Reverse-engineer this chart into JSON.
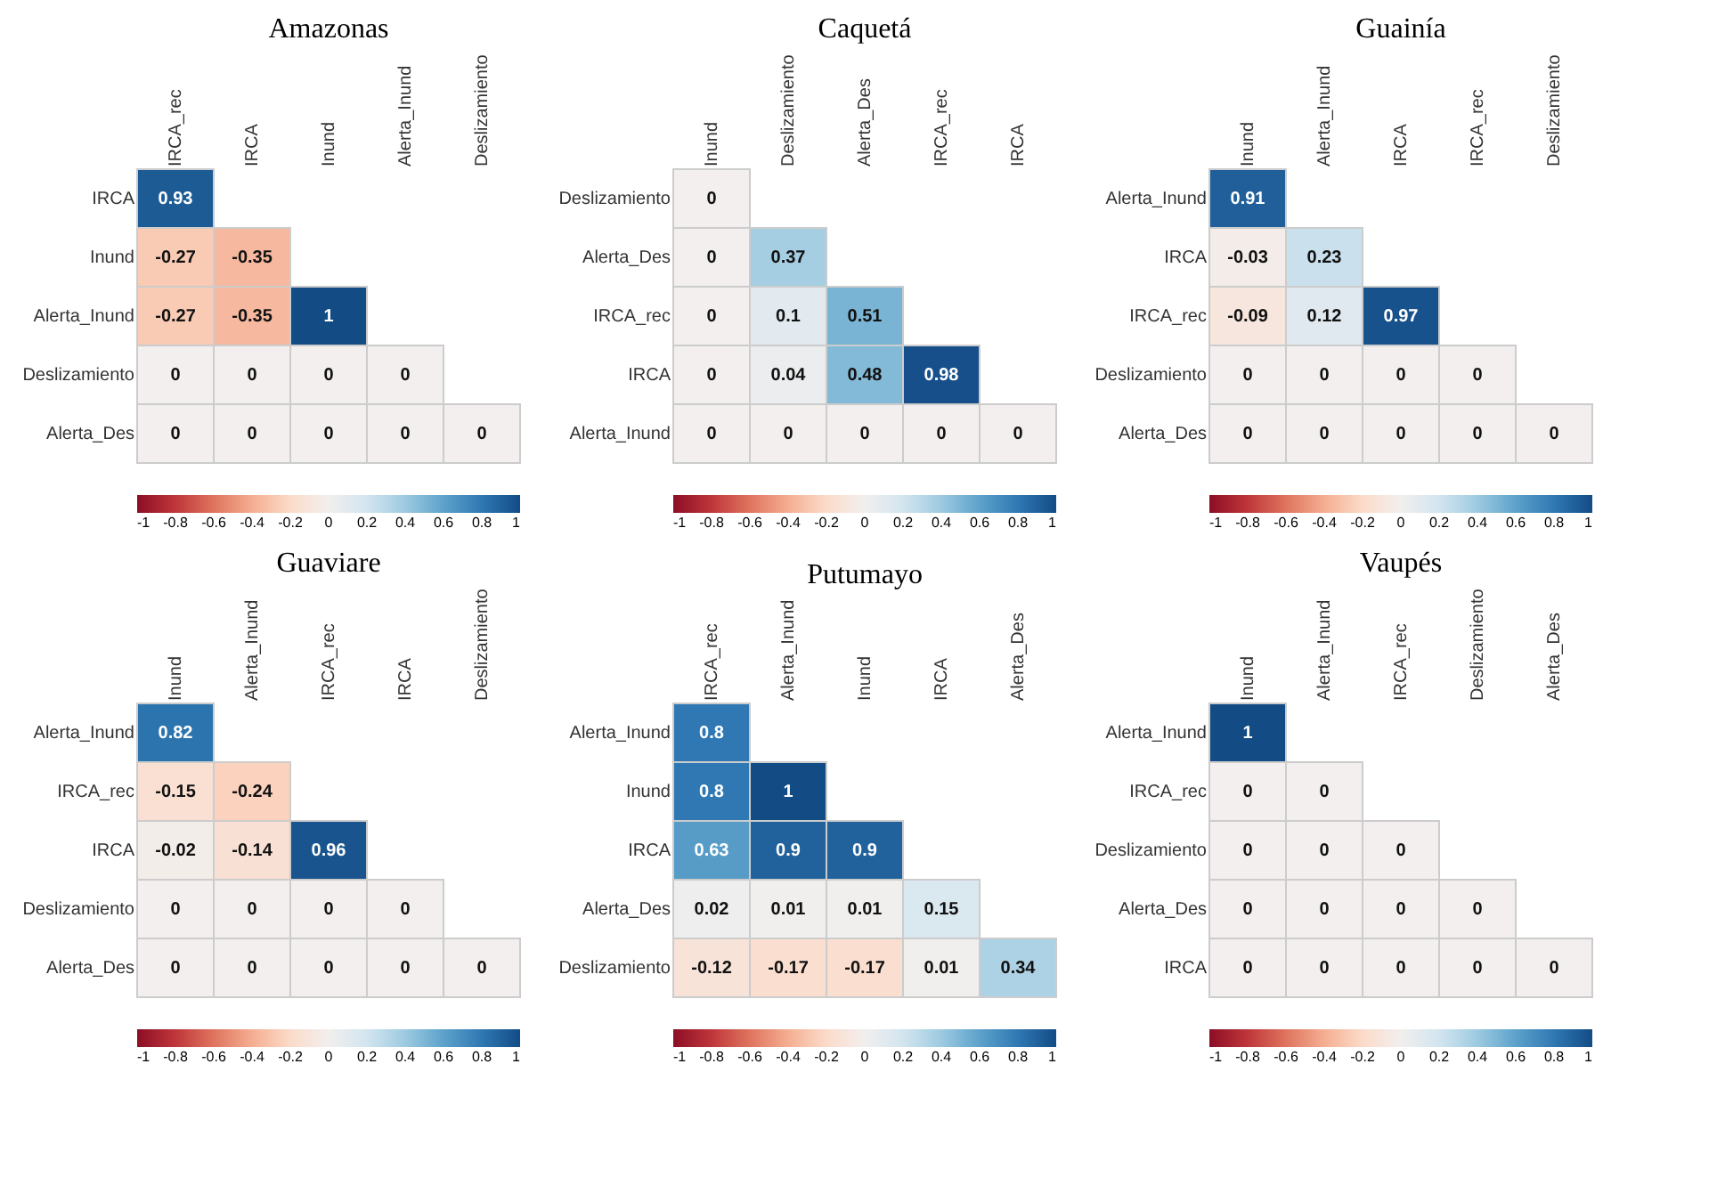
{
  "chart_data": [
    {
      "type": "heatmap",
      "title": "Amazonas",
      "categories": [
        "IRCA_rec",
        "IRCA",
        "Inund",
        "Alerta_Inund",
        "Deslizamiento"
      ],
      "y_categories": [
        "IRCA",
        "Inund",
        "Alerta_Inund",
        "Deslizamiento",
        "Alerta_Des"
      ],
      "cells": [
        [
          0.93,
          null,
          null,
          null,
          null
        ],
        [
          -0.27,
          -0.35,
          null,
          null,
          null
        ],
        [
          -0.27,
          -0.35,
          1,
          null,
          null
        ],
        [
          0,
          0,
          0,
          0,
          null
        ],
        [
          0,
          0,
          0,
          0,
          0
        ]
      ],
      "clim": [
        -1,
        1
      ],
      "cticks": [
        -1,
        -0.8,
        -0.6,
        -0.4,
        -0.2,
        0,
        0.2,
        0.4,
        0.6,
        0.8,
        1
      ],
      "data_labels": true
    },
    {
      "type": "heatmap",
      "title": "Caquetá",
      "categories": [
        "Inund",
        "Deslizamiento",
        "Alerta_Des",
        "IRCA_rec",
        "IRCA"
      ],
      "y_categories": [
        "Deslizamiento",
        "Alerta_Des",
        "IRCA_rec",
        "IRCA",
        "Alerta_Inund"
      ],
      "cells": [
        [
          0,
          null,
          null,
          null,
          null
        ],
        [
          0,
          0.37,
          null,
          null,
          null
        ],
        [
          0,
          0.1,
          0.51,
          null,
          null
        ],
        [
          0,
          0.04,
          0.48,
          0.98,
          null
        ],
        [
          0,
          0,
          0,
          0,
          0
        ]
      ],
      "clim": [
        -1,
        1
      ],
      "cticks": [
        -1,
        -0.8,
        -0.6,
        -0.4,
        -0.2,
        0,
        0.2,
        0.4,
        0.6,
        0.8,
        1
      ],
      "data_labels": true
    },
    {
      "type": "heatmap",
      "title": "Guainía",
      "categories": [
        "Inund",
        "Alerta_Inund",
        "IRCA",
        "IRCA_rec",
        "Deslizamiento"
      ],
      "y_categories": [
        "Alerta_Inund",
        "IRCA",
        "IRCA_rec",
        "Deslizamiento",
        "Alerta_Des"
      ],
      "cells": [
        [
          0.91,
          null,
          null,
          null,
          null
        ],
        [
          -0.03,
          0.23,
          null,
          null,
          null
        ],
        [
          -0.09,
          0.12,
          0.97,
          null,
          null
        ],
        [
          0,
          0,
          0,
          0,
          null
        ],
        [
          0,
          0,
          0,
          0,
          0
        ]
      ],
      "clim": [
        -1,
        1
      ],
      "cticks": [
        -1,
        -0.8,
        -0.6,
        -0.4,
        -0.2,
        0,
        0.2,
        0.4,
        0.6,
        0.8,
        1
      ],
      "data_labels": true
    },
    {
      "type": "heatmap",
      "title": "Guaviare",
      "categories": [
        "Inund",
        "Alerta_Inund",
        "IRCA_rec",
        "IRCA",
        "Deslizamiento"
      ],
      "y_categories": [
        "Alerta_Inund",
        "IRCA_rec",
        "IRCA",
        "Deslizamiento",
        "Alerta_Des"
      ],
      "cells": [
        [
          0.82,
          null,
          null,
          null,
          null
        ],
        [
          -0.15,
          -0.24,
          null,
          null,
          null
        ],
        [
          -0.02,
          -0.14,
          0.96,
          null,
          null
        ],
        [
          0,
          0,
          0,
          0,
          null
        ],
        [
          0,
          0,
          0,
          0,
          0
        ]
      ],
      "clim": [
        -1,
        1
      ],
      "cticks": [
        -1,
        -0.8,
        -0.6,
        -0.4,
        -0.2,
        0,
        0.2,
        0.4,
        0.6,
        0.8,
        1
      ],
      "data_labels": true
    },
    {
      "type": "heatmap",
      "title": "Putumayo",
      "categories": [
        "IRCA_rec",
        "Alerta_Inund",
        "Inund",
        "IRCA",
        "Alerta_Des"
      ],
      "y_categories": [
        "Alerta_Inund",
        "Inund",
        "IRCA",
        "Alerta_Des",
        "Deslizamiento"
      ],
      "cells": [
        [
          0.8,
          null,
          null,
          null,
          null
        ],
        [
          0.8,
          1,
          null,
          null,
          null
        ],
        [
          0.63,
          0.9,
          0.9,
          null,
          null
        ],
        [
          0.02,
          0.01,
          0.01,
          0.15,
          null
        ],
        [
          -0.12,
          -0.17,
          -0.17,
          0.01,
          0.34
        ]
      ],
      "clim": [
        -1,
        1
      ],
      "cticks": [
        -1,
        -0.8,
        -0.6,
        -0.4,
        -0.2,
        0,
        0.2,
        0.4,
        0.6,
        0.8,
        1
      ],
      "data_labels": true
    },
    {
      "type": "heatmap",
      "title": "Vaupés",
      "categories": [
        "Inund",
        "Alerta_Inund",
        "IRCA_rec",
        "Deslizamiento",
        "Alerta_Des"
      ],
      "y_categories": [
        "Alerta_Inund",
        "IRCA_rec",
        "Deslizamiento",
        "Alerta_Des",
        "IRCA"
      ],
      "cells": [
        [
          1,
          null,
          null,
          null,
          null
        ],
        [
          0,
          0,
          null,
          null,
          null
        ],
        [
          0,
          0,
          0,
          null,
          null
        ],
        [
          0,
          0,
          0,
          0,
          null
        ],
        [
          0,
          0,
          0,
          0,
          0
        ]
      ],
      "clim": [
        -1,
        1
      ],
      "cticks": [
        -1,
        -0.8,
        -0.6,
        -0.4,
        -0.2,
        0,
        0.2,
        0.4,
        0.6,
        0.8,
        1
      ],
      "data_labels": true
    }
  ]
}
